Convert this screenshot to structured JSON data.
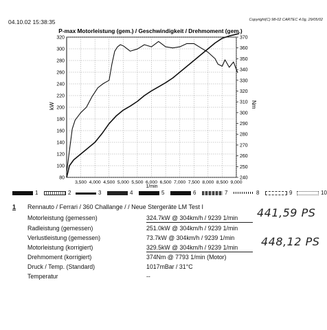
{
  "header": {
    "datetime": "04.10.02 15:38:35",
    "copyright": "Copyright(C) 98-02 CARTEC 4.0g, 29/05/02"
  },
  "chart_data": {
    "type": "line",
    "title": "P-max Motorleistung (gem.) / Geschwindigkeit / Drehmoment (gem.)",
    "xlabel": "1/min",
    "ylabel_left": "kW",
    "ylabel_right": "Nm",
    "xlim": [
      3000,
      9000
    ],
    "ylim_left": [
      80,
      320
    ],
    "ylim_right": [
      240,
      370
    ],
    "x_ticks": [
      "3,500",
      "4,000",
      "4,500",
      "5,000",
      "5,500",
      "6,000",
      "6,500",
      "7,000",
      "7,500",
      "8,000",
      "8,500",
      "9,000"
    ],
    "x_tick_values": [
      3500,
      4000,
      4500,
      5000,
      5500,
      6000,
      6500,
      7000,
      7500,
      8000,
      8500,
      9000
    ],
    "y_left_ticks": [
      80,
      100,
      120,
      140,
      160,
      180,
      200,
      220,
      240,
      260,
      280,
      300,
      320
    ],
    "y_right_ticks": [
      240,
      250,
      260,
      270,
      280,
      290,
      300,
      310,
      320,
      330,
      340,
      350,
      360,
      370
    ],
    "series": [
      {
        "axis": "left",
        "x": [
          3000,
          3100,
          3250,
          3500,
          3750,
          4000,
          4250,
          4500,
          4750,
          5000,
          5250,
          5500,
          5750,
          6000,
          6250,
          6500,
          6750,
          7000,
          7250,
          7500,
          7750,
          8000,
          8250,
          8500,
          8750,
          9000,
          9100
        ],
        "values": [
          80,
          100,
          110,
          120,
          130,
          140,
          155,
          172,
          185,
          195,
          202,
          210,
          220,
          228,
          235,
          242,
          250,
          260,
          270,
          280,
          290,
          300,
          310,
          318,
          322,
          325,
          326
        ]
      },
      {
        "axis": "right",
        "x": [
          3000,
          3050,
          3100,
          3200,
          3300,
          3500,
          3700,
          3900,
          4100,
          4200,
          4300,
          4500,
          4600,
          4700,
          4800,
          4900,
          5000,
          5100,
          5250,
          5500,
          5750,
          6000,
          6250,
          6500,
          6750,
          7000,
          7250,
          7500,
          7750,
          8000,
          8250,
          8350,
          8500,
          8600,
          8750,
          8900,
          9000,
          9050
        ],
        "values": [
          245,
          255,
          265,
          285,
          293,
          300,
          305,
          315,
          323,
          325,
          327,
          330,
          345,
          357,
          361,
          363,
          362,
          360,
          357,
          359,
          363,
          361,
          366,
          361,
          360,
          361,
          364,
          364,
          360,
          356,
          350,
          345,
          343,
          349,
          342,
          347,
          340,
          337
        ]
      }
    ]
  },
  "legend": {
    "items": [
      "1",
      "2",
      "3",
      "4",
      "5",
      "6",
      "7",
      "8",
      "9",
      "10"
    ]
  },
  "results": {
    "index": "1",
    "vehicle": "Rennauto / Ferrari / 360 Challange / / Neue Stergeräte LM Test I",
    "rows": [
      {
        "label": "Motorleistung (gemessen)",
        "value": "324.7kW @ 304km/h / 9239 1/min"
      },
      {
        "label": "Radleistung (gemessen)",
        "value": "251.0kW @ 304km/h / 9239 1/min"
      },
      {
        "label": "Verlustleistung (gemessen)",
        "value": "73.7kW @ 304km/h / 9239 1/min"
      },
      {
        "label": "Motorleistung (korrigiert)",
        "value": "329.5kW @ 304km/h / 9239 1/min"
      },
      {
        "label": "Drehmoment (korrigiert)",
        "value": "374Nm @ 7793 1/min (Motor)"
      },
      {
        "label": "Druck / Temp. (Standard)",
        "value": "1017mBar / 31°C"
      },
      {
        "label": "Temperatur",
        "value": "--"
      }
    ],
    "handwritten": [
      "441,59 PS",
      "448,12 PS"
    ]
  }
}
